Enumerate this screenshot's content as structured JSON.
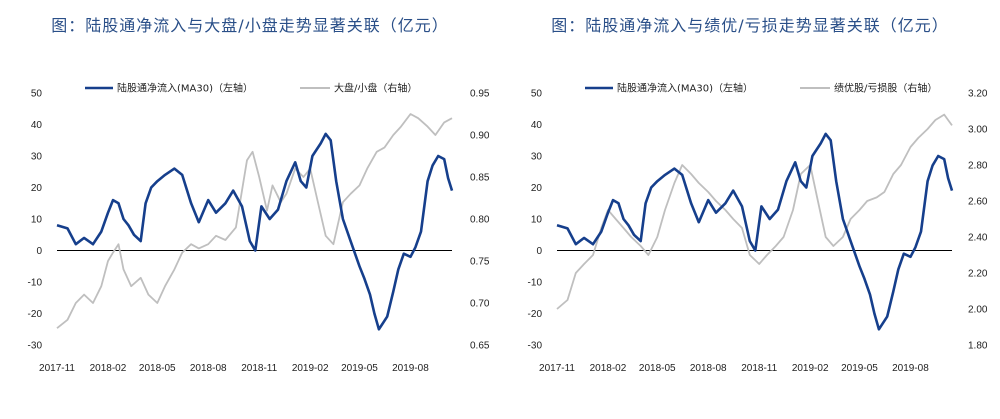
{
  "chart_data": [
    {
      "type": "line",
      "title": "图：陆股通净流入与大盘/小盘走势显著关联（亿元）",
      "legend": "top",
      "grid": false,
      "x_ticks": [
        "2017-11",
        "2018-02",
        "2018-05",
        "2018-08",
        "2018-11",
        "2019-02",
        "2019-05",
        "2019-08"
      ],
      "x_range": [
        "2017-11-01",
        "2019-10-15"
      ],
      "y_left": {
        "min": -30,
        "max": 50,
        "ticks": [
          -30,
          -20,
          -10,
          0,
          10,
          20,
          30,
          40,
          50
        ]
      },
      "y_right": {
        "min": 0.65,
        "max": 0.95,
        "ticks": [
          "0.65",
          "0.70",
          "0.75",
          "0.80",
          "0.85",
          "0.90",
          "0.95"
        ]
      },
      "series": [
        {
          "name": "陆股通净流入(MA30)（左轴）",
          "axis": "left",
          "color": "#163f8c",
          "points": [
            [
              "2017-11-01",
              8
            ],
            [
              "2017-11-20",
              7
            ],
            [
              "2017-12-05",
              2
            ],
            [
              "2017-12-20",
              4
            ],
            [
              "2018-01-05",
              2
            ],
            [
              "2018-01-20",
              6
            ],
            [
              "2018-02-01",
              12
            ],
            [
              "2018-02-10",
              16
            ],
            [
              "2018-02-20",
              15
            ],
            [
              "2018-03-01",
              10
            ],
            [
              "2018-03-10",
              8
            ],
            [
              "2018-03-20",
              5
            ],
            [
              "2018-04-01",
              3
            ],
            [
              "2018-04-10",
              15
            ],
            [
              "2018-04-20",
              20
            ],
            [
              "2018-05-01",
              22
            ],
            [
              "2018-05-15",
              24
            ],
            [
              "2018-06-01",
              26
            ],
            [
              "2018-06-15",
              24
            ],
            [
              "2018-07-01",
              15
            ],
            [
              "2018-07-15",
              9
            ],
            [
              "2018-08-01",
              16
            ],
            [
              "2018-08-15",
              12
            ],
            [
              "2018-09-01",
              15
            ],
            [
              "2018-09-15",
              19
            ],
            [
              "2018-10-01",
              14
            ],
            [
              "2018-10-15",
              3
            ],
            [
              "2018-10-25",
              0
            ],
            [
              "2018-11-05",
              14
            ],
            [
              "2018-11-20",
              10
            ],
            [
              "2018-12-05",
              13
            ],
            [
              "2018-12-20",
              22
            ],
            [
              "2019-01-05",
              28
            ],
            [
              "2019-01-15",
              22
            ],
            [
              "2019-01-25",
              20
            ],
            [
              "2019-02-05",
              30
            ],
            [
              "2019-02-20",
              34
            ],
            [
              "2019-03-01",
              37
            ],
            [
              "2019-03-10",
              35
            ],
            [
              "2019-03-20",
              22
            ],
            [
              "2019-04-01",
              10
            ],
            [
              "2019-04-15",
              3
            ],
            [
              "2019-05-01",
              -5
            ],
            [
              "2019-05-10",
              -9
            ],
            [
              "2019-05-20",
              -14
            ],
            [
              "2019-05-28",
              -20
            ],
            [
              "2019-06-05",
              -25
            ],
            [
              "2019-06-20",
              -21
            ],
            [
              "2019-07-01",
              -13
            ],
            [
              "2019-07-10",
              -6
            ],
            [
              "2019-07-20",
              -1
            ],
            [
              "2019-08-01",
              -2
            ],
            [
              "2019-08-10",
              1
            ],
            [
              "2019-08-20",
              6
            ],
            [
              "2019-09-01",
              22
            ],
            [
              "2019-09-10",
              27
            ],
            [
              "2019-09-20",
              30
            ],
            [
              "2019-10-01",
              29
            ],
            [
              "2019-10-08",
              23
            ],
            [
              "2019-10-15",
              19
            ]
          ]
        },
        {
          "name": "大盘/小盘（右轴）",
          "axis": "right",
          "color": "#bfbfbf",
          "points": [
            [
              "2017-11-01",
              0.67
            ],
            [
              "2017-11-20",
              0.68
            ],
            [
              "2017-12-05",
              0.7
            ],
            [
              "2017-12-20",
              0.71
            ],
            [
              "2018-01-05",
              0.7
            ],
            [
              "2018-01-20",
              0.72
            ],
            [
              "2018-02-01",
              0.75
            ],
            [
              "2018-02-10",
              0.76
            ],
            [
              "2018-02-20",
              0.77
            ],
            [
              "2018-03-01",
              0.74
            ],
            [
              "2018-03-15",
              0.72
            ],
            [
              "2018-04-01",
              0.73
            ],
            [
              "2018-04-15",
              0.71
            ],
            [
              "2018-05-01",
              0.7
            ],
            [
              "2018-05-15",
              0.72
            ],
            [
              "2018-06-01",
              0.74
            ],
            [
              "2018-06-15",
              0.76
            ],
            [
              "2018-07-01",
              0.77
            ],
            [
              "2018-07-15",
              0.765
            ],
            [
              "2018-08-01",
              0.77
            ],
            [
              "2018-08-15",
              0.78
            ],
            [
              "2018-09-01",
              0.775
            ],
            [
              "2018-09-20",
              0.79
            ],
            [
              "2018-10-10",
              0.87
            ],
            [
              "2018-10-20",
              0.88
            ],
            [
              "2018-11-01",
              0.85
            ],
            [
              "2018-11-15",
              0.81
            ],
            [
              "2018-11-25",
              0.84
            ],
            [
              "2018-12-10",
              0.82
            ],
            [
              "2018-12-20",
              0.83
            ],
            [
              "2019-01-05",
              0.86
            ],
            [
              "2019-01-20",
              0.85
            ],
            [
              "2019-02-01",
              0.86
            ],
            [
              "2019-02-15",
              0.82
            ],
            [
              "2019-03-01",
              0.78
            ],
            [
              "2019-03-15",
              0.77
            ],
            [
              "2019-04-01",
              0.82
            ],
            [
              "2019-04-15",
              0.83
            ],
            [
              "2019-05-01",
              0.84
            ],
            [
              "2019-05-15",
              0.86
            ],
            [
              "2019-06-01",
              0.88
            ],
            [
              "2019-06-15",
              0.885
            ],
            [
              "2019-07-01",
              0.9
            ],
            [
              "2019-07-15",
              0.91
            ],
            [
              "2019-08-01",
              0.925
            ],
            [
              "2019-08-15",
              0.92
            ],
            [
              "2019-09-01",
              0.91
            ],
            [
              "2019-09-15",
              0.9
            ],
            [
              "2019-10-01",
              0.915
            ],
            [
              "2019-10-15",
              0.92
            ]
          ]
        }
      ]
    },
    {
      "type": "line",
      "title": "图：陆股通净流入与绩优/亏损走势显著关联（亿元）",
      "legend": "top",
      "grid": false,
      "x_ticks": [
        "2017-11",
        "2018-02",
        "2018-05",
        "2018-08",
        "2018-11",
        "2019-02",
        "2019-05",
        "2019-08"
      ],
      "x_range": [
        "2017-11-01",
        "2019-10-15"
      ],
      "y_left": {
        "min": -30,
        "max": 50,
        "ticks": [
          -30,
          -20,
          -10,
          0,
          10,
          20,
          30,
          40,
          50
        ]
      },
      "y_right": {
        "min": 1.8,
        "max": 3.2,
        "ticks": [
          "1.80",
          "2.00",
          "2.20",
          "2.40",
          "2.60",
          "2.80",
          "3.00",
          "3.20"
        ]
      },
      "series": [
        {
          "name": "陆股通净流入(MA30)（左轴）",
          "axis": "left",
          "color": "#163f8c",
          "points": [
            [
              "2017-11-01",
              8
            ],
            [
              "2017-11-20",
              7
            ],
            [
              "2017-12-05",
              2
            ],
            [
              "2017-12-20",
              4
            ],
            [
              "2018-01-05",
              2
            ],
            [
              "2018-01-20",
              6
            ],
            [
              "2018-02-01",
              12
            ],
            [
              "2018-02-10",
              16
            ],
            [
              "2018-02-20",
              15
            ],
            [
              "2018-03-01",
              10
            ],
            [
              "2018-03-10",
              8
            ],
            [
              "2018-03-20",
              5
            ],
            [
              "2018-04-01",
              3
            ],
            [
              "2018-04-10",
              15
            ],
            [
              "2018-04-20",
              20
            ],
            [
              "2018-05-01",
              22
            ],
            [
              "2018-05-15",
              24
            ],
            [
              "2018-06-01",
              26
            ],
            [
              "2018-06-15",
              24
            ],
            [
              "2018-07-01",
              15
            ],
            [
              "2018-07-15",
              9
            ],
            [
              "2018-08-01",
              16
            ],
            [
              "2018-08-15",
              12
            ],
            [
              "2018-09-01",
              15
            ],
            [
              "2018-09-15",
              19
            ],
            [
              "2018-10-01",
              14
            ],
            [
              "2018-10-15",
              3
            ],
            [
              "2018-10-25",
              0
            ],
            [
              "2018-11-05",
              14
            ],
            [
              "2018-11-20",
              10
            ],
            [
              "2018-12-05",
              13
            ],
            [
              "2018-12-20",
              22
            ],
            [
              "2019-01-05",
              28
            ],
            [
              "2019-01-15",
              22
            ],
            [
              "2019-01-25",
              20
            ],
            [
              "2019-02-05",
              30
            ],
            [
              "2019-02-20",
              34
            ],
            [
              "2019-03-01",
              37
            ],
            [
              "2019-03-10",
              35
            ],
            [
              "2019-03-20",
              22
            ],
            [
              "2019-04-01",
              10
            ],
            [
              "2019-04-15",
              3
            ],
            [
              "2019-05-01",
              -5
            ],
            [
              "2019-05-10",
              -9
            ],
            [
              "2019-05-20",
              -14
            ],
            [
              "2019-05-28",
              -20
            ],
            [
              "2019-06-05",
              -25
            ],
            [
              "2019-06-20",
              -21
            ],
            [
              "2019-07-01",
              -13
            ],
            [
              "2019-07-10",
              -6
            ],
            [
              "2019-07-20",
              -1
            ],
            [
              "2019-08-01",
              -2
            ],
            [
              "2019-08-10",
              1
            ],
            [
              "2019-08-20",
              6
            ],
            [
              "2019-09-01",
              22
            ],
            [
              "2019-09-10",
              27
            ],
            [
              "2019-09-20",
              30
            ],
            [
              "2019-10-01",
              29
            ],
            [
              "2019-10-08",
              23
            ],
            [
              "2019-10-15",
              19
            ]
          ]
        },
        {
          "name": "绩优股/亏损股（右轴）",
          "axis": "right",
          "color": "#bfbfbf",
          "points": [
            [
              "2017-11-01",
              2.0
            ],
            [
              "2017-11-20",
              2.05
            ],
            [
              "2017-12-05",
              2.2
            ],
            [
              "2017-12-20",
              2.25
            ],
            [
              "2018-01-05",
              2.3
            ],
            [
              "2018-01-20",
              2.45
            ],
            [
              "2018-02-01",
              2.55
            ],
            [
              "2018-02-15",
              2.5
            ],
            [
              "2018-03-01",
              2.45
            ],
            [
              "2018-03-15",
              2.4
            ],
            [
              "2018-04-01",
              2.35
            ],
            [
              "2018-04-15",
              2.3
            ],
            [
              "2018-05-01",
              2.4
            ],
            [
              "2018-05-15",
              2.55
            ],
            [
              "2018-06-01",
              2.7
            ],
            [
              "2018-06-15",
              2.8
            ],
            [
              "2018-07-01",
              2.75
            ],
            [
              "2018-07-15",
              2.7
            ],
            [
              "2018-08-01",
              2.65
            ],
            [
              "2018-08-15",
              2.6
            ],
            [
              "2018-09-01",
              2.55
            ],
            [
              "2018-09-15",
              2.5
            ],
            [
              "2018-10-01",
              2.45
            ],
            [
              "2018-10-15",
              2.3
            ],
            [
              "2018-11-01",
              2.25
            ],
            [
              "2018-11-15",
              2.3
            ],
            [
              "2018-12-01",
              2.35
            ],
            [
              "2018-12-15",
              2.4
            ],
            [
              "2019-01-01",
              2.55
            ],
            [
              "2019-01-15",
              2.75
            ],
            [
              "2019-02-01",
              2.8
            ],
            [
              "2019-02-15",
              2.6
            ],
            [
              "2019-03-01",
              2.4
            ],
            [
              "2019-03-15",
              2.35
            ],
            [
              "2019-04-01",
              2.4
            ],
            [
              "2019-04-15",
              2.5
            ],
            [
              "2019-05-01",
              2.55
            ],
            [
              "2019-05-15",
              2.6
            ],
            [
              "2019-06-01",
              2.62
            ],
            [
              "2019-06-15",
              2.65
            ],
            [
              "2019-07-01",
              2.75
            ],
            [
              "2019-07-15",
              2.8
            ],
            [
              "2019-08-01",
              2.9
            ],
            [
              "2019-08-15",
              2.95
            ],
            [
              "2019-09-01",
              3.0
            ],
            [
              "2019-09-15",
              3.05
            ],
            [
              "2019-10-01",
              3.08
            ],
            [
              "2019-10-15",
              3.02
            ]
          ]
        }
      ]
    }
  ]
}
